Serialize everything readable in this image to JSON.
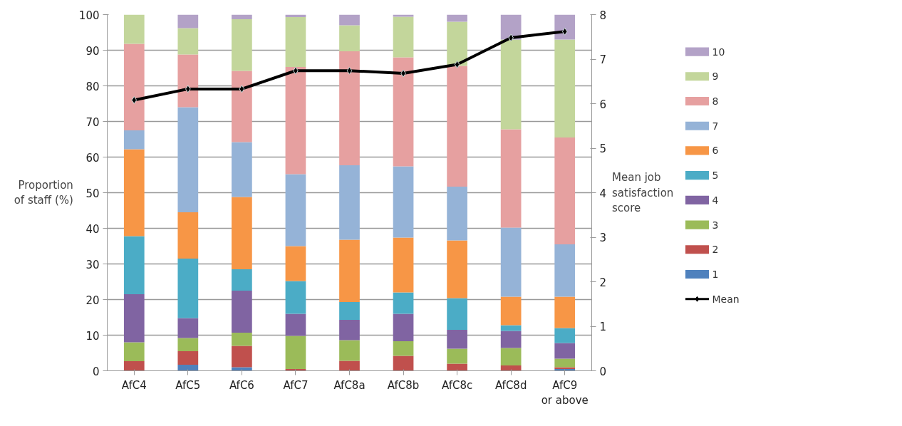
{
  "chart_data": {
    "type": "bar",
    "stacked": true,
    "ylabel": "Proportion\nof staff (%)",
    "y2label": "Mean job\nsatisfaction\nscore",
    "categories": [
      "AfC4",
      "AfC5",
      "AfC6",
      "AfC7",
      "AfC8a",
      "AfC8b",
      "AfC8c",
      "AfC8d",
      "AfC9\nor above"
    ],
    "ylim": [
      0,
      100
    ],
    "yticks": [
      0,
      10,
      20,
      30,
      40,
      50,
      60,
      70,
      80,
      90,
      100
    ],
    "y2lim": [
      0,
      8
    ],
    "y2ticks": [
      0,
      1,
      2,
      3,
      4,
      5,
      6,
      7,
      8
    ],
    "grid": "y",
    "legend": "right",
    "series": [
      {
        "name": "1",
        "color": "#4f81bd",
        "values": [
          0,
          1.7,
          1,
          0,
          0,
          0,
          0,
          0,
          0.5
        ]
      },
      {
        "name": "2",
        "color": "#c0504d",
        "values": [
          2.7,
          3.8,
          6,
          0.5,
          2.8,
          4.2,
          2,
          1.5,
          0.5
        ]
      },
      {
        "name": "3",
        "color": "#9bbb59",
        "values": [
          5.3,
          3.7,
          3.7,
          9.3,
          5.8,
          4.1,
          4.2,
          4.9,
          2.4
        ]
      },
      {
        "name": "4",
        "color": "#8064a2",
        "values": [
          13.5,
          5.6,
          11.8,
          6.2,
          5.7,
          7.7,
          5.3,
          4.8,
          4.4
        ]
      },
      {
        "name": "5",
        "color": "#4bacc6",
        "values": [
          16.3,
          16.7,
          6,
          9.2,
          5,
          6,
          8.9,
          1.6,
          4.2
        ]
      },
      {
        "name": "6",
        "color": "#f79646",
        "values": [
          24.4,
          13,
          20.3,
          9.8,
          17.5,
          15.4,
          16.2,
          8,
          8.8
        ]
      },
      {
        "name": "7",
        "color": "#95b3d7",
        "values": [
          5.3,
          29.5,
          15.4,
          20.2,
          20.9,
          20,
          15.1,
          19.4,
          14.7
        ]
      },
      {
        "name": "8",
        "color": "#e6a0a0",
        "values": [
          24.3,
          14.8,
          20,
          30.1,
          32,
          30.6,
          33.9,
          27.6,
          30
        ]
      },
      {
        "name": "9",
        "color": "#c3d69b",
        "values": [
          8.2,
          7.4,
          14.5,
          14,
          7.3,
          11.4,
          12.4,
          25.2,
          27.5
        ]
      },
      {
        "name": "10",
        "color": "#b3a2c7",
        "values": [
          0,
          3.8,
          1.3,
          0.7,
          3,
          0.6,
          2,
          7,
          7
        ]
      },
      {
        "name": "Mean",
        "type": "line",
        "axis": "y2",
        "color": "#000000",
        "marker": "diamond",
        "values": [
          6.08,
          6.33,
          6.33,
          6.74,
          6.74,
          6.68,
          6.88,
          7.48,
          7.62
        ]
      }
    ]
  }
}
